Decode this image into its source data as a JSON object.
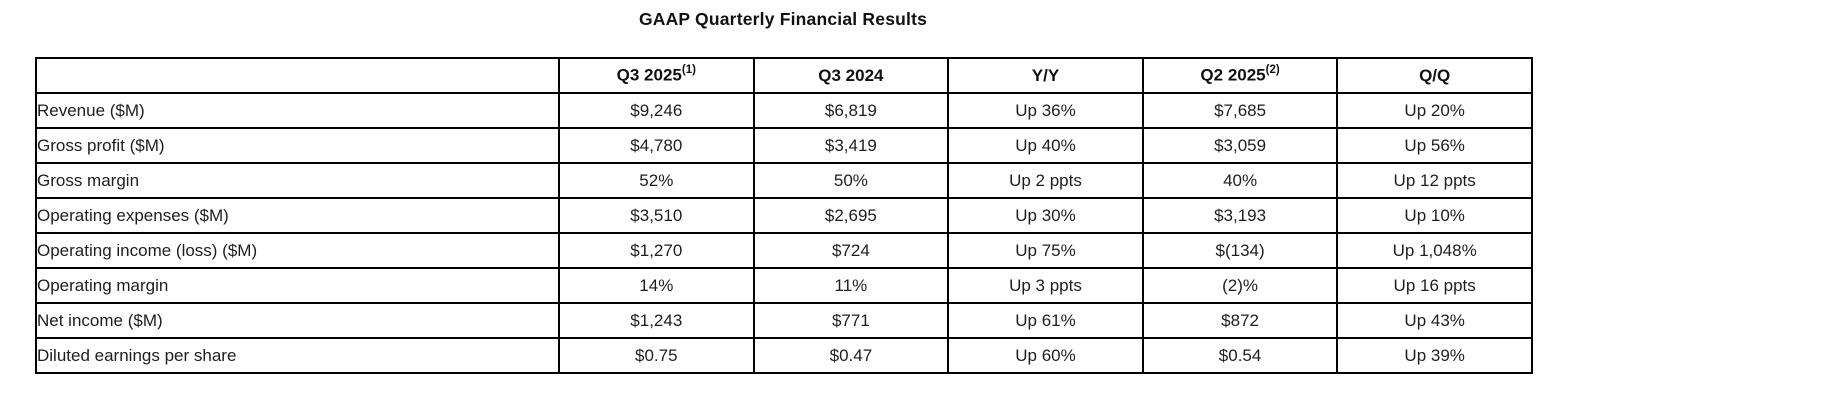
{
  "title": "GAAP Quarterly Financial Results",
  "table": {
    "columns": [
      {
        "label": "",
        "sup": ""
      },
      {
        "label": "Q3 2025",
        "sup": "(1)"
      },
      {
        "label": "Q3 2024",
        "sup": ""
      },
      {
        "label": "Y/Y",
        "sup": ""
      },
      {
        "label": "Q2 2025",
        "sup": "(2)"
      },
      {
        "label": "Q/Q",
        "sup": ""
      }
    ],
    "rows": [
      {
        "label": "Revenue ($M)",
        "values": [
          "$9,246",
          "$6,819",
          "Up 36%",
          "$7,685",
          "Up 20%"
        ]
      },
      {
        "label": "Gross profit ($M)",
        "values": [
          "$4,780",
          "$3,419",
          "Up 40%",
          "$3,059",
          "Up 56%"
        ]
      },
      {
        "label": "Gross margin",
        "values": [
          "52%",
          "50%",
          "Up 2 ppts",
          "40%",
          "Up 12 ppts"
        ]
      },
      {
        "label": "Operating expenses ($M)",
        "values": [
          "$3,510",
          "$2,695",
          "Up 30%",
          "$3,193",
          "Up 10%"
        ]
      },
      {
        "label": "Operating income (loss) ($M)",
        "values": [
          "$1,270",
          "$724",
          "Up 75%",
          "$(134)",
          "Up 1,048%"
        ]
      },
      {
        "label": "Operating margin",
        "values": [
          "14%",
          "11%",
          "Up 3 ppts",
          "(2)%",
          "Up 16 ppts"
        ]
      },
      {
        "label": "Net income ($M)",
        "values": [
          "$1,243",
          "$771",
          "Up 61%",
          "$872",
          "Up 43%"
        ]
      },
      {
        "label": "Diluted earnings per share",
        "values": [
          "$0.75",
          "$0.47",
          "Up 60%",
          "$0.54",
          "Up 39%"
        ]
      }
    ]
  },
  "chart_data": {
    "type": "table",
    "title": "GAAP Quarterly Financial Results",
    "columns": [
      "",
      "Q3 2025(1)",
      "Q3 2024",
      "Y/Y",
      "Q2 2025(2)",
      "Q/Q"
    ],
    "rows": [
      [
        "Revenue ($M)",
        "$9,246",
        "$6,819",
        "Up 36%",
        "$7,685",
        "Up 20%"
      ],
      [
        "Gross profit ($M)",
        "$4,780",
        "$3,419",
        "Up 40%",
        "$3,059",
        "Up 56%"
      ],
      [
        "Gross margin",
        "52%",
        "50%",
        "Up 2 ppts",
        "40%",
        "Up 12 ppts"
      ],
      [
        "Operating expenses ($M)",
        "$3,510",
        "$2,695",
        "Up 30%",
        "$3,193",
        "Up 10%"
      ],
      [
        "Operating income (loss) ($M)",
        "$1,270",
        "$724",
        "Up 75%",
        "$(134)",
        "Up 1,048%"
      ],
      [
        "Operating margin",
        "14%",
        "11%",
        "Up 3 ppts",
        "(2)%",
        "Up 16 ppts"
      ],
      [
        "Net income ($M)",
        "$1,243",
        "$771",
        "Up 61%",
        "$872",
        "Up 43%"
      ],
      [
        "Diluted earnings per share",
        "$0.75",
        "$0.47",
        "Up 60%",
        "$0.54",
        "Up 39%"
      ]
    ]
  }
}
